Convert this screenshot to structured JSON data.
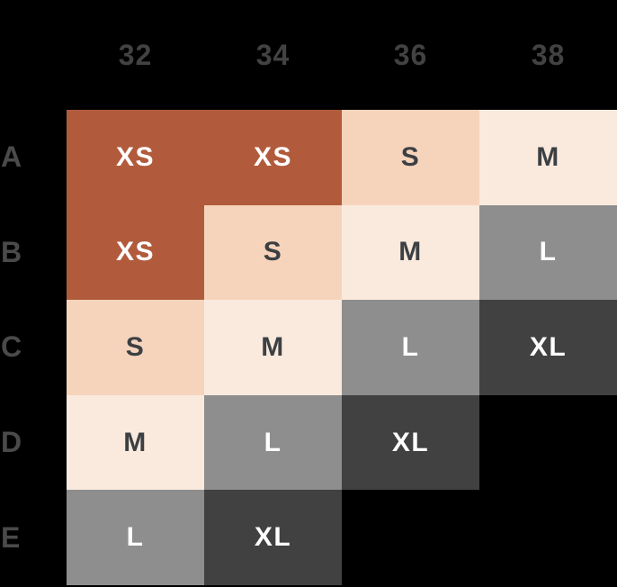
{
  "chart_data": {
    "type": "heatmap",
    "x_categories": [
      "32",
      "34",
      "36",
      "38"
    ],
    "y_categories": [
      "A",
      "B",
      "C",
      "D",
      "E"
    ],
    "values": [
      [
        "XS",
        "XS",
        "S",
        "M"
      ],
      [
        "XS",
        "S",
        "M",
        "L"
      ],
      [
        "S",
        "M",
        "L",
        "XL"
      ],
      [
        "M",
        "L",
        "XL",
        null
      ],
      [
        "L",
        "XL",
        null,
        null
      ]
    ],
    "size_styles": {
      "XS": {
        "bg": "#b15b3c",
        "text": "#ffffff"
      },
      "S": {
        "bg": "#f6d4bc",
        "text": "#3c4043"
      },
      "M": {
        "bg": "#faeade",
        "text": "#3c4043"
      },
      "L": {
        "bg": "#8e8e8e",
        "text": "#ffffff"
      },
      "XL": {
        "bg": "#414141",
        "text": "#ffffff"
      }
    },
    "layout": {
      "background": "#000000",
      "column_header_text_color": "#424242",
      "row_header_text_color": "#4a4a4a",
      "grid_lines": "off",
      "legend": "none"
    }
  }
}
